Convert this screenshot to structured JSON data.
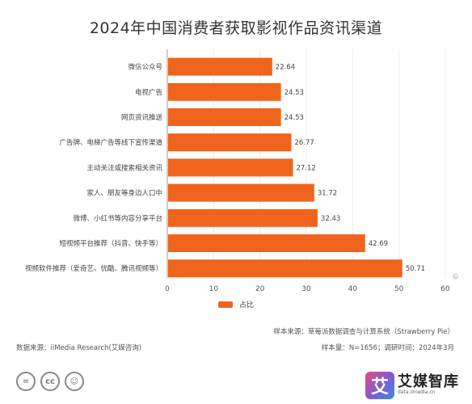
{
  "chart_data": {
    "type": "bar",
    "orientation": "horizontal",
    "title": "2024年中国消费者获取影视作品资讯渠道",
    "categories": [
      "微信公众号",
      "电视广告",
      "网页资讯推送",
      "广告牌、电梯广告等线下宣传渠道",
      "主动关注或搜索相关资讯",
      "家人、朋友等身边人口中",
      "微博、小红书等内容分享平台",
      "短视频平台推荐（抖音、快手等）",
      "视频软件推荐（爱奇艺、优酷、腾讯视频等）"
    ],
    "series": [
      {
        "name": "占比",
        "values": [
          22.64,
          24.53,
          24.53,
          26.77,
          27.12,
          31.72,
          32.43,
          42.69,
          50.71
        ],
        "labels": [
          "22.64",
          "24.53",
          "24.53",
          "26.77",
          "27.12",
          "31.72",
          "32.43",
          "42.69",
          "50.71"
        ]
      }
    ],
    "xlim": [
      0,
      60
    ],
    "xticks": [
      0,
      10,
      20,
      30,
      40,
      50,
      60
    ],
    "grid": true,
    "legend_position": "bottom-center",
    "bar_color": "#f0641e"
  },
  "source": {
    "sample_source": "样本来源：草莓派数据调查与计算系统（Strawberry Pie）",
    "sample_size": "样本量：N=1656；调研时间：2024年3月",
    "data_source": "数据来源：iiMedia Research(艾媒咨询)"
  },
  "brand": {
    "logo_char": "艾",
    "name": "艾媒智库",
    "sub": "data.iimedia.cn"
  },
  "license_icons": [
    "=",
    "cc",
    "person"
  ],
  "corner_mark": "©"
}
